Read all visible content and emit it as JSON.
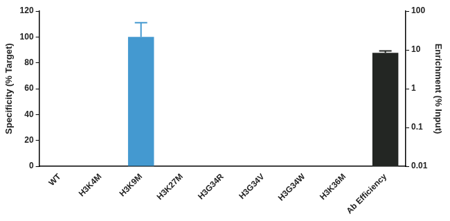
{
  "chart_data": {
    "type": "bar",
    "categories": [
      "WT",
      "H3K4M",
      "H3K9M",
      "H3K27M",
      "H3G34R",
      "H3G34V",
      "H3G34W",
      "H3K36M",
      "Ab Efficiency"
    ],
    "series": [
      {
        "color": "#4499d0",
        "values": [
          0,
          0,
          100,
          0,
          0,
          0,
          0,
          0,
          null
        ],
        "errors": [
          null,
          null,
          11,
          null,
          null,
          null,
          null,
          null,
          null
        ]
      },
      {
        "color": "#232623",
        "axis": "y2",
        "values": [
          null,
          null,
          null,
          null,
          null,
          null,
          null,
          null,
          8.4
        ],
        "errors": [
          null,
          null,
          null,
          null,
          null,
          null,
          null,
          null,
          1.0
        ]
      }
    ],
    "ylabel": "Specificity (% Target)",
    "y2label": "Enrichment (% Input)",
    "ylim": [
      0,
      120
    ],
    "yticks": [
      0,
      20,
      40,
      60,
      80,
      100,
      120
    ],
    "y2lim": [
      0.01,
      100
    ],
    "y2ticks": [
      0.01,
      0.1,
      1,
      10,
      100
    ],
    "log": "y2",
    "grid": false
  }
}
